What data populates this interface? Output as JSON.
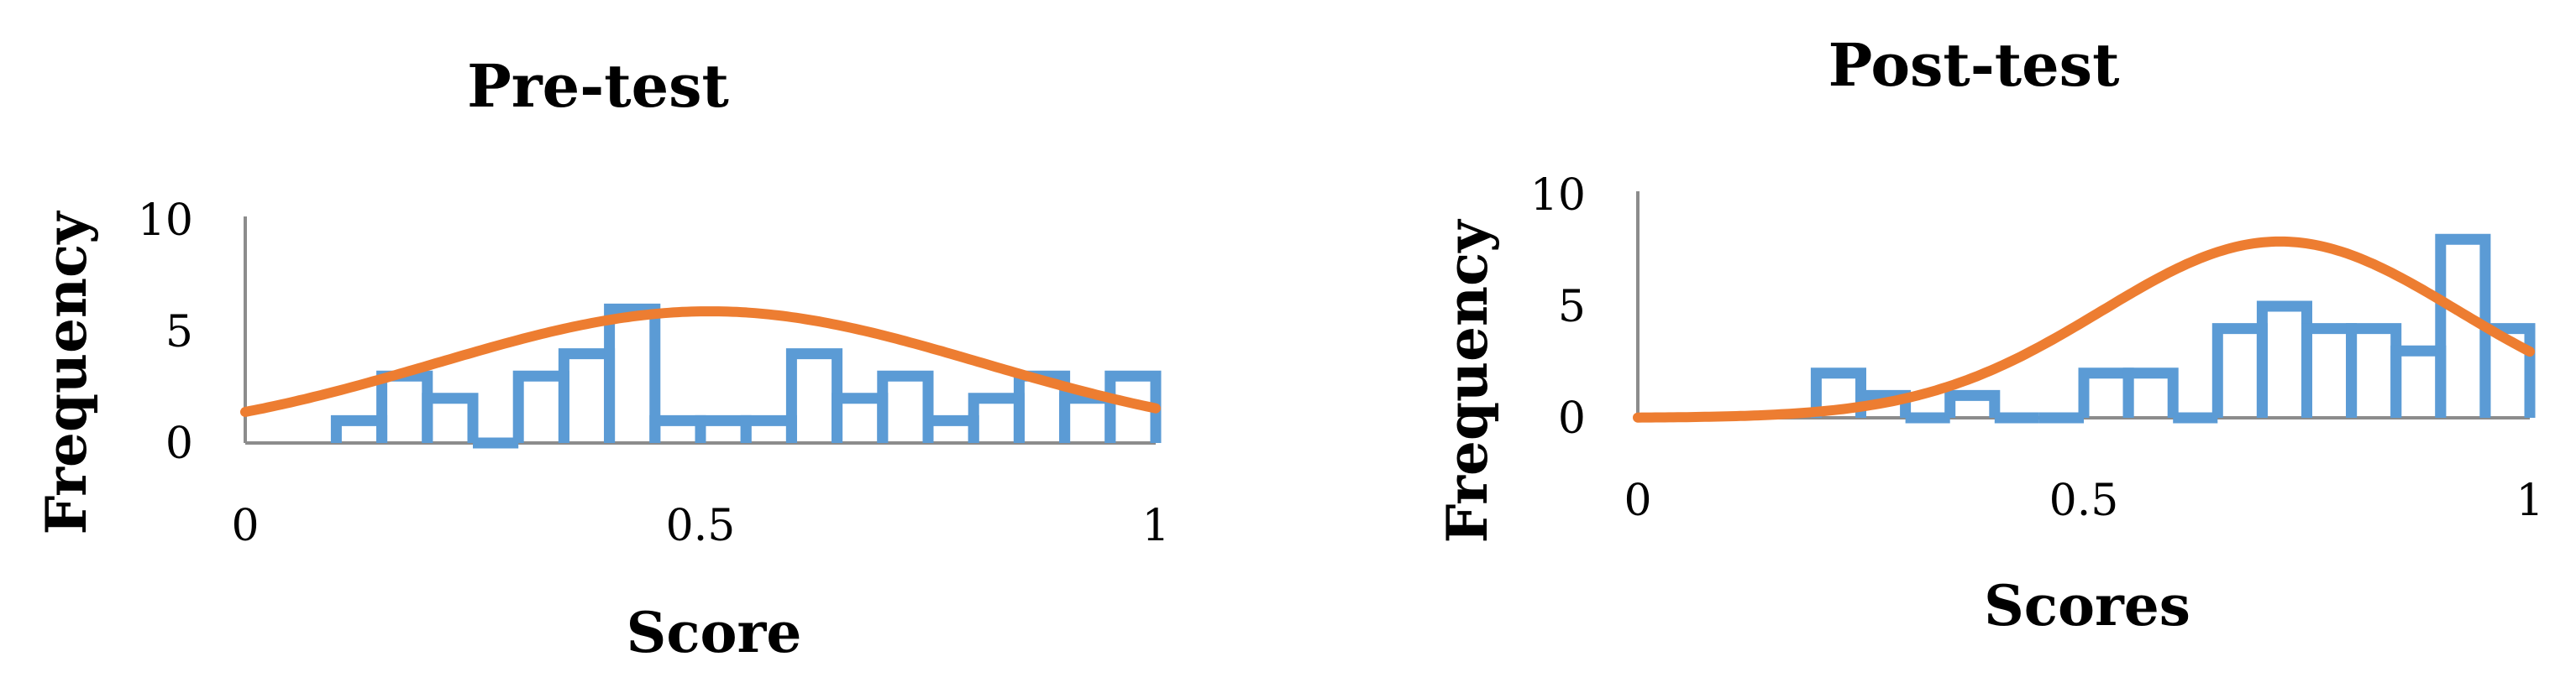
{
  "chart_data": [
    {
      "type": "histogram",
      "title": "Pre-test",
      "xlabel": "Score",
      "ylabel": "Frequency",
      "xlim": [
        0,
        1
      ],
      "ylim": [
        0,
        10
      ],
      "x_ticks": [
        "0",
        "0.5",
        "1"
      ],
      "y_ticks": [
        "0",
        "5",
        "10"
      ],
      "grid": false,
      "bin_width": 0.05,
      "series": [
        {
          "kind": "histogram",
          "bin_starts": [
            0.1,
            0.15,
            0.2,
            0.25,
            0.3,
            0.35,
            0.4,
            0.45,
            0.5,
            0.55,
            0.6,
            0.65,
            0.7,
            0.75,
            0.8,
            0.85,
            0.9,
            0.95
          ],
          "values": [
            1,
            3,
            2,
            0,
            3,
            4,
            6,
            1,
            1,
            1,
            4,
            2,
            3,
            1,
            2,
            3,
            2,
            3
          ]
        },
        {
          "kind": "normal-curve",
          "mean": 0.51,
          "peak": 5.9,
          "sd": 0.3
        }
      ]
    },
    {
      "type": "histogram",
      "title": "Post-test",
      "xlabel": "Scores",
      "ylabel": "Frequency",
      "xlim": [
        0,
        1
      ],
      "ylim": [
        0,
        10
      ],
      "x_ticks": [
        "0",
        "0.5",
        "1"
      ],
      "y_ticks": [
        "0",
        "5",
        "10"
      ],
      "grid": false,
      "bin_width": 0.05,
      "series": [
        {
          "kind": "histogram",
          "bin_starts": [
            0.2,
            0.25,
            0.3,
            0.35,
            0.4,
            0.45,
            0.5,
            0.55,
            0.6,
            0.65,
            0.7,
            0.75,
            0.8,
            0.85,
            0.9,
            0.95
          ],
          "values": [
            2,
            1,
            0,
            1,
            0,
            0,
            2,
            2,
            0,
            4,
            5,
            4,
            4,
            3,
            8,
            4
          ]
        },
        {
          "kind": "normal-curve",
          "mean": 0.72,
          "peak": 7.9,
          "sd": 0.2
        }
      ]
    }
  ],
  "colors": {
    "histogram": "#5b9bd5",
    "curve": "#ed7d31",
    "axis": "#8c8c8c"
  }
}
